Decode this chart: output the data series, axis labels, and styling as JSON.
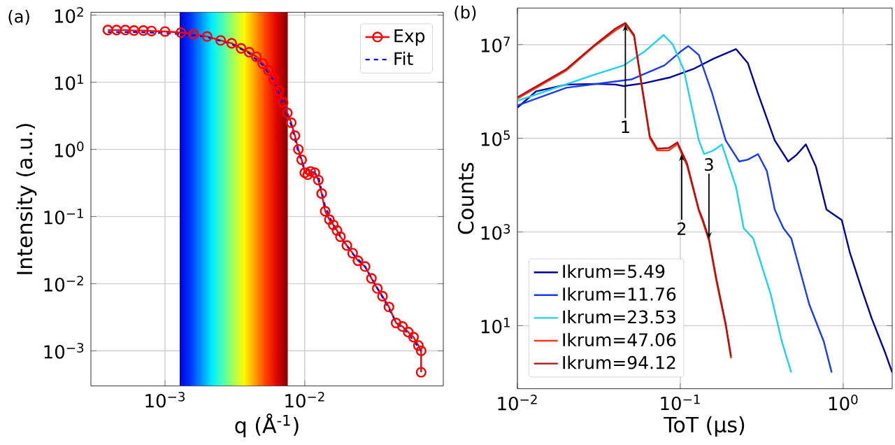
{
  "chart_data": [
    {
      "type": "line",
      "title": "(a)",
      "xlabel": "q (Å$^{-1}$)",
      "ylabel": "Intensity (a.u.)",
      "log": "xy",
      "grid": true,
      "legend": "top right",
      "xlim": [
        0.000295,
        0.098
      ],
      "ylim": [
        0.0003,
        110
      ],
      "xticks": [
        {
          "value": 0.001,
          "label": "10$^{−3}$"
        },
        {
          "value": 0.01,
          "label": "10$^{−2}$"
        }
      ],
      "yticks": [
        {
          "value": 0.001,
          "label": "10$^{−3}$"
        },
        {
          "value": 0.01,
          "label": "10$^{−2}$"
        },
        {
          "value": 0.1,
          "label": "10$^{−1}$"
        },
        {
          "value": 1,
          "label": "10$^{0}$"
        },
        {
          "value": 10,
          "label": "10$^{1}$"
        },
        {
          "value": 100,
          "label": "10$^{2}$"
        }
      ],
      "bands": [
        {
          "axis": "x",
          "from": 0.00126,
          "to": 0.0076
        }
      ],
      "series": [
        {
          "name": "Exp",
          "color": "#ff0000",
          "marker": "circle",
          "line_style": "solid",
          "x": [
            0.00039,
            0.00045,
            0.00052,
            0.0006,
            0.0007,
            0.0008,
            0.001,
            0.0013,
            0.0016,
            0.002,
            0.0025,
            0.003,
            0.0035,
            0.004,
            0.0045,
            0.005,
            0.0055,
            0.006,
            0.0065,
            0.007,
            0.0075,
            0.008,
            0.0085,
            0.009,
            0.0095,
            0.01,
            0.0105,
            0.011,
            0.0118,
            0.0125,
            0.0132,
            0.014,
            0.015,
            0.016,
            0.017,
            0.018,
            0.02,
            0.022,
            0.024,
            0.027,
            0.03,
            0.033,
            0.036,
            0.04,
            0.045,
            0.05,
            0.055,
            0.06,
            0.065,
            0.068,
            0.068
          ],
          "values": [
            60,
            60,
            60,
            59,
            59,
            58,
            57,
            55,
            52,
            48,
            42,
            38,
            32,
            28,
            24,
            19,
            15,
            11,
            7.5,
            5,
            3.5,
            2.5,
            1.6,
            1,
            0.7,
            0.45,
            0.42,
            0.47,
            0.45,
            0.35,
            0.22,
            0.12,
            0.09,
            0.075,
            0.062,
            0.05,
            0.037,
            0.0285,
            0.022,
            0.018,
            0.012,
            0.0085,
            0.0065,
            0.0045,
            0.0026,
            0.0023,
            0.0019,
            0.0016,
            0.0012,
            0.001,
            0.00048
          ]
        },
        {
          "name": "Fit",
          "color": "#0000ff",
          "marker": "none",
          "line_style": "dashed",
          "x": [
            0.00039,
            0.0006,
            0.001,
            0.0015,
            0.002,
            0.003,
            0.004,
            0.005,
            0.006,
            0.007,
            0.008,
            0.009,
            0.01,
            0.011,
            0.0125,
            0.014,
            0.016,
            0.018,
            0.022,
            0.027,
            0.035,
            0.045,
            0.055,
            0.068
          ],
          "values": [
            56,
            56,
            54,
            51,
            47,
            37,
            27,
            18,
            10.5,
            4.8,
            2.3,
            0.9,
            0.5,
            0.5,
            0.4,
            0.14,
            0.075,
            0.05,
            0.028,
            0.018,
            0.007,
            0.0027,
            0.0018,
            0.001
          ]
        }
      ]
    },
    {
      "type": "line",
      "title": "(b)",
      "xlabel": "ToT (μs)",
      "ylabel": "Counts",
      "log": "xy",
      "grid": true,
      "legend": "bottom left",
      "xlim": [
        0.01,
        2
      ],
      "ylim": [
        0.45,
        60000000
      ],
      "xticks": [
        {
          "value": 0.01,
          "label": "10$^{−2}$"
        },
        {
          "value": 0.1,
          "label": "10$^{−1}$"
        },
        {
          "value": 1,
          "label": "10$^{0}$"
        }
      ],
      "yticks": [
        {
          "value": 10,
          "label": "10$^{1}$"
        },
        {
          "value": 1000,
          "label": "10$^{3}$"
        },
        {
          "value": 100000,
          "label": "10$^{5}$"
        },
        {
          "value": 10000000,
          "label": "10$^{7}$"
        }
      ],
      "annotations": [
        {
          "text": "1",
          "x": 0.046,
          "y": 27000000
        },
        {
          "text": "2",
          "x": 0.102,
          "y": 46000
        },
        {
          "text": "3",
          "x": 0.15,
          "y": 700
        }
      ],
      "series": [
        {
          "name": "Ikrum=5.49",
          "color": "#00009a",
          "x": [
            0.01,
            0.013,
            0.02,
            0.03,
            0.04,
            0.045,
            0.06,
            0.087,
            0.12,
            0.16,
            0.22,
            0.26,
            0.3,
            0.38,
            0.46,
            0.52,
            0.59,
            0.68,
            0.79,
            0.98,
            1.1,
            1.3,
            1.5,
            1.8,
            2.0
          ],
          "values": [
            450000,
            1000000,
            1400000,
            1450000,
            1400000,
            1300000,
            1500000,
            2000000,
            3000000,
            5000000,
            8000000,
            4000000,
            900000,
            90000,
            32000,
            45000,
            74000,
            25000,
            3000,
            1800,
            360,
            60,
            14,
            2.8,
            1
          ]
        },
        {
          "name": "Ikrum=11.76",
          "color": "#1a3cf0",
          "x": [
            0.01,
            0.02,
            0.05,
            0.08,
            0.1,
            0.112,
            0.13,
            0.157,
            0.19,
            0.23,
            0.26,
            0.3,
            0.34,
            0.38,
            0.43,
            0.48,
            0.62,
            0.76,
            0.85
          ],
          "values": [
            500000,
            1200000,
            1800000,
            3600000,
            7000000,
            9300000,
            6000000,
            900000,
            90000,
            32000,
            35000,
            46000,
            20000,
            3000,
            1200,
            730,
            28,
            4.6,
            1
          ]
        },
        {
          "name": "Ikrum=23.53",
          "color": "#20d0f0",
          "x": [
            0.01,
            0.03,
            0.045,
            0.06,
            0.079,
            0.09,
            0.105,
            0.13,
            0.14,
            0.16,
            0.18,
            0.22,
            0.245,
            0.28,
            0.36,
            0.42,
            0.48
          ],
          "values": [
            630000,
            2300000,
            3600000,
            7000000,
            16000000,
            10000000,
            2900000,
            90000,
            46000,
            55000,
            74000,
            9000,
            1200,
            730,
            45,
            4.6,
            1
          ]
        },
        {
          "name": "Ikrum=47.06",
          "color": "#ff3a1a",
          "x": [
            0.01,
            0.02,
            0.03,
            0.04,
            0.046,
            0.052,
            0.059,
            0.065,
            0.072,
            0.085,
            0.096,
            0.11,
            0.13,
            0.137,
            0.15,
            0.167,
            0.19,
            0.205
          ],
          "values": [
            700000,
            2800000,
            9500000,
            20000000,
            27000000,
            15000000,
            850000,
            100000,
            55000,
            55000,
            75000,
            26000,
            2800,
            1700,
            650,
            85,
            10,
            2
          ]
        },
        {
          "name": "Ikrum=94.12",
          "color": "#b01010",
          "x": [
            0.01,
            0.02,
            0.03,
            0.04,
            0.046,
            0.052,
            0.059,
            0.065,
            0.072,
            0.085,
            0.096,
            0.11,
            0.13,
            0.137,
            0.15,
            0.167,
            0.19,
            0.205
          ],
          "values": [
            750000,
            3000000,
            10000000,
            22000000,
            29000000,
            16000000,
            950000,
            110000,
            60000,
            62000,
            82000,
            29000,
            3000,
            1900,
            720,
            95,
            11,
            2.2
          ]
        }
      ]
    }
  ]
}
